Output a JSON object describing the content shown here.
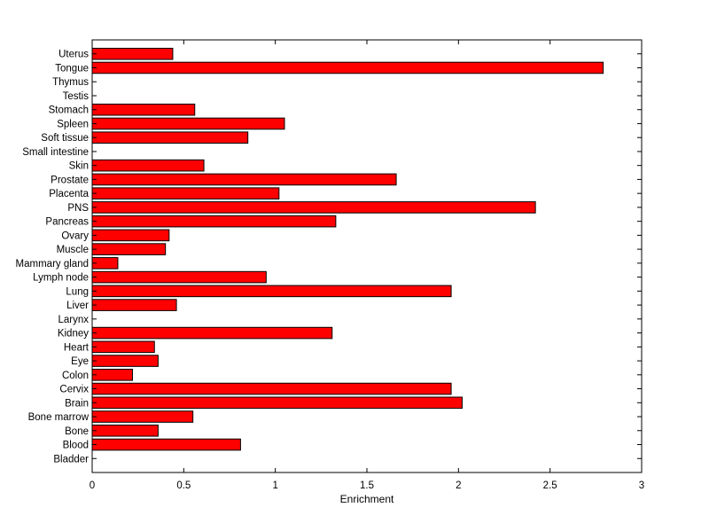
{
  "chart_data": {
    "type": "bar",
    "orientation": "horizontal",
    "title": "",
    "xlabel": "Enrichment",
    "ylabel": "",
    "xlim": [
      0,
      3
    ],
    "xticks": [
      0,
      0.5,
      1,
      1.5,
      2,
      2.5,
      3
    ],
    "xtick_labels": [
      "0",
      "0.5",
      "1",
      "1.5",
      "2",
      "2.5",
      "3"
    ],
    "grid": false,
    "bar_color": "#ff0000",
    "edge_color": "#000000",
    "categories": [
      "Bladder",
      "Blood",
      "Bone",
      "Bone marrow",
      "Brain",
      "Cervix",
      "Colon",
      "Eye",
      "Heart",
      "Kidney",
      "Larynx",
      "Liver",
      "Lung",
      "Lymph node",
      "Mammary gland",
      "Muscle",
      "Ovary",
      "Pancreas",
      "PNS",
      "Placenta",
      "Prostate",
      "Skin",
      "Small intestine",
      "Soft tissue",
      "Spleen",
      "Stomach",
      "Testis",
      "Thymus",
      "Tongue",
      "Uterus"
    ],
    "values": [
      0,
      0.81,
      0.36,
      0.55,
      2.02,
      1.96,
      0.22,
      0.36,
      0.34,
      1.31,
      0,
      0.46,
      1.96,
      0.95,
      0.14,
      0.4,
      0.42,
      1.33,
      2.42,
      1.02,
      1.66,
      0.61,
      0,
      0.85,
      1.05,
      0.56,
      0,
      0,
      2.79,
      0.44
    ]
  }
}
